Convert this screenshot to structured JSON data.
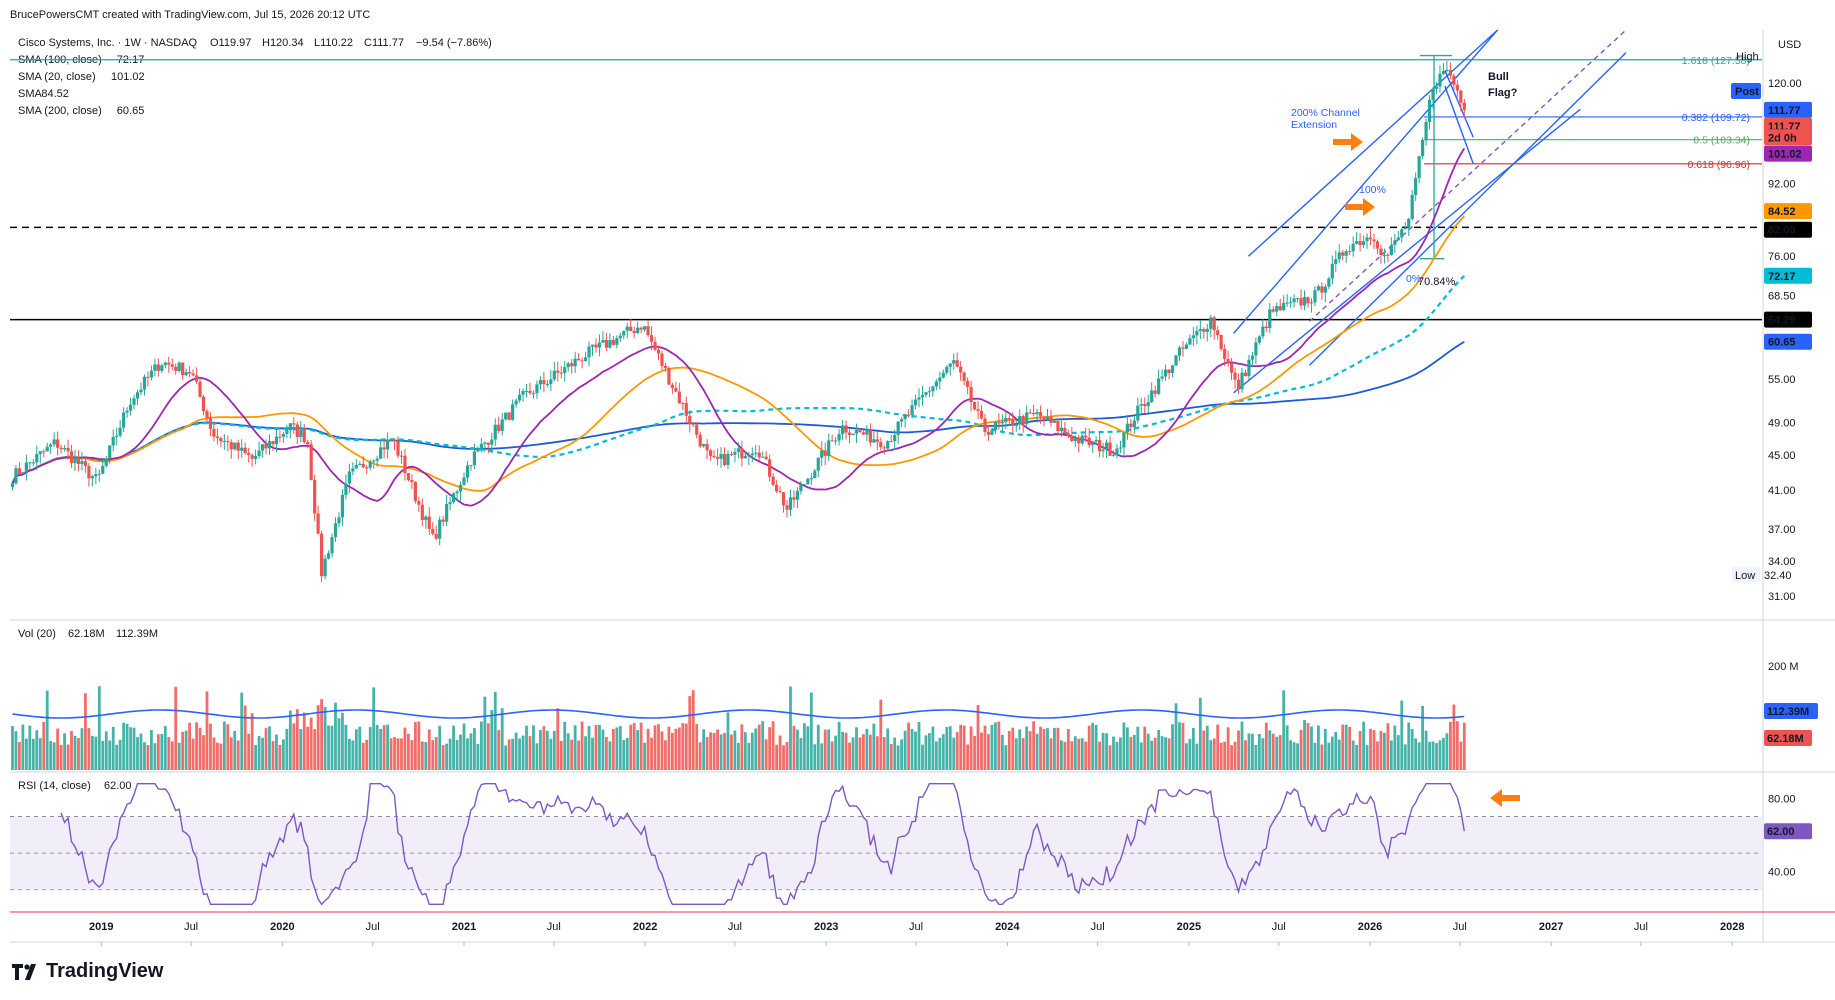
{
  "header": {
    "credit": "BrucePowersCMT created with TradingView.com, Jul 15, 2026 20:12 UTC",
    "symbol": "Cisco Systems, Inc. · 1W · NASDAQ",
    "ohlc": {
      "o": "O119.97",
      "h": "H120.34",
      "l": "L110.22",
      "c": "C111.77",
      "chg": "−9.54 (−7.86%)"
    },
    "indicators": [
      {
        "label": "SMA (100, close)",
        "value": "72.17",
        "color": "#00BCD4"
      },
      {
        "label": "SMA (20, close)",
        "value": "101.02",
        "color": "#9C27B0"
      },
      {
        "label": "SMA",
        "value": "84.52",
        "color": "#FF9800"
      },
      {
        "label": "SMA (200, close)",
        "value": "60.65",
        "color": "#1E5AD7"
      }
    ],
    "currency": "USD"
  },
  "annotations": {
    "channel_ext": [
      "200% Channel",
      "Extension"
    ],
    "hundred": "100%",
    "zero": "0%",
    "pct": "70.84%",
    "bull": [
      "Bull",
      "Flag?"
    ],
    "high": "High",
    "low": "Low"
  },
  "levels": [
    {
      "label": "1.618 (127.58)",
      "price": 127.58,
      "color": "#26A69A"
    },
    {
      "label": "0.382 (109.72)",
      "price": 109.72,
      "color": "#2962FF"
    },
    {
      "label": "0.5 (103.34)",
      "price": 103.34,
      "color": "#4CAF50"
    },
    {
      "label": "0.618 (96.96)",
      "price": 96.96,
      "color": "#D32F2F"
    }
  ],
  "price_badges": [
    {
      "text": "Post",
      "price": 117.5,
      "bg": "#2962FF",
      "fg": "#ffffff"
    },
    {
      "text": "111.77",
      "price": 111.77,
      "bg": "#2962FF",
      "fg": "#ffffff"
    },
    {
      "text": "111.77",
      "price": 107.2,
      "bg": "#EF5350",
      "fg": "#ffffff"
    },
    {
      "text": "2d 0h",
      "price": 104.0,
      "bg": "#EF5350",
      "fg": "#ffffff"
    },
    {
      "text": "101.02",
      "price": 99.6,
      "bg": "#9C27B0",
      "fg": "#ffffff"
    },
    {
      "text": "84.52",
      "price": 85.6,
      "bg": "#FF9800",
      "fg": "#131722"
    },
    {
      "text": "82.00",
      "price": 81.5,
      "bg": "#000000",
      "fg": "#ffffff"
    },
    {
      "text": "72.17",
      "price": 72.17,
      "bg": "#00BCD4",
      "fg": "#131722"
    },
    {
      "text": "64.29",
      "price": 64.29,
      "bg": "#000000",
      "fg": "#ffffff"
    },
    {
      "text": "60.65",
      "price": 60.65,
      "bg": "#2962FF",
      "fg": "#ffffff"
    }
  ],
  "chart_data": {
    "type": "candlestick",
    "title": "Cisco Systems, Inc. · 1W · NASDAQ",
    "y_scale": "log",
    "ylim": [
      29.5,
      138
    ],
    "y_ticks": [
      120.0,
      92.0,
      76.0,
      68.5,
      55.0,
      49.0,
      45.0,
      41.0,
      37.0,
      34.0,
      31.0
    ],
    "x_ticks": [
      "2019",
      "Jul",
      "2020",
      "Jul",
      "2021",
      "Jul",
      "2022",
      "Jul",
      "2023",
      "Jul",
      "2024",
      "Jul",
      "2025",
      "Jul",
      "2026",
      "Jul",
      "2027",
      "Jul",
      "2028"
    ],
    "x_range": [
      "2018-07",
      "2028-03"
    ],
    "horizontal_lines": [
      {
        "price": 82.0,
        "style": "dashed"
      },
      {
        "price": 64.29,
        "style": "solid"
      }
    ],
    "price_waypoints": [
      [
        "2018-07-06",
        42.5
      ],
      [
        "2018-10-01",
        46.5
      ],
      [
        "2018-12-24",
        42.0
      ],
      [
        "2019-03-01",
        52.0
      ],
      [
        "2019-05-01",
        57.5
      ],
      [
        "2019-07-01",
        56.0
      ],
      [
        "2019-08-15",
        47.5
      ],
      [
        "2019-11-01",
        44.5
      ],
      [
        "2020-01-15",
        48.5
      ],
      [
        "2020-02-20",
        47.0
      ],
      [
        "2020-03-20",
        33.0
      ],
      [
        "2020-05-15",
        42.5
      ],
      [
        "2020-08-10",
        47.0
      ],
      [
        "2020-10-30",
        36.0
      ],
      [
        "2021-01-15",
        44.5
      ],
      [
        "2021-05-01",
        52.5
      ],
      [
        "2021-09-01",
        58.5
      ],
      [
        "2021-12-27",
        63.5
      ],
      [
        "2022-02-15",
        55.5
      ],
      [
        "2022-05-15",
        44.0
      ],
      [
        "2022-08-15",
        46.0
      ],
      [
        "2022-10-14",
        39.0
      ],
      [
        "2023-02-01",
        48.5
      ],
      [
        "2023-05-01",
        46.5
      ],
      [
        "2023-07-15",
        52.5
      ],
      [
        "2023-09-15",
        57.5
      ],
      [
        "2023-11-15",
        48.0
      ],
      [
        "2024-03-01",
        50.0
      ],
      [
        "2024-05-15",
        47.0
      ],
      [
        "2024-08-05",
        45.5
      ],
      [
        "2024-09-15",
        50.0
      ],
      [
        "2024-12-15",
        59.0
      ],
      [
        "2025-02-15",
        64.5
      ],
      [
        "2025-04-08",
        53.5
      ],
      [
        "2025-06-15",
        65.5
      ],
      [
        "2025-09-15",
        68.5
      ],
      [
        "2025-11-15",
        78.0
      ],
      [
        "2026-01-08",
        80.5
      ],
      [
        "2026-02-01",
        75.5
      ],
      [
        "2026-03-20",
        83.5
      ],
      [
        "2026-05-08",
        119.5
      ],
      [
        "2026-06-05",
        124.5
      ],
      [
        "2026-07-15",
        111.77
      ]
    ],
    "series": [
      {
        "name": "SMA (20, close)",
        "last": 101.02,
        "color": "#9C27B0"
      },
      {
        "name": "SMA",
        "last": 84.52,
        "color": "#FF9800"
      },
      {
        "name": "SMA (100, close)",
        "last": 72.17,
        "color": "#00BCD4",
        "style": "dashed"
      },
      {
        "name": "SMA (200, close)",
        "last": 60.65,
        "color": "#1E5AD7"
      }
    ],
    "volume": {
      "label": "Vol (20)",
      "last": "62.18M",
      "ma": "112.39M",
      "tick": "200 M"
    },
    "rsi": {
      "label": "RSI (14, close)",
      "last": "62.00",
      "ticks": [
        "80.00",
        "40.00"
      ],
      "upper": 70,
      "lower": 30,
      "ylim": [
        20,
        90
      ]
    }
  }
}
